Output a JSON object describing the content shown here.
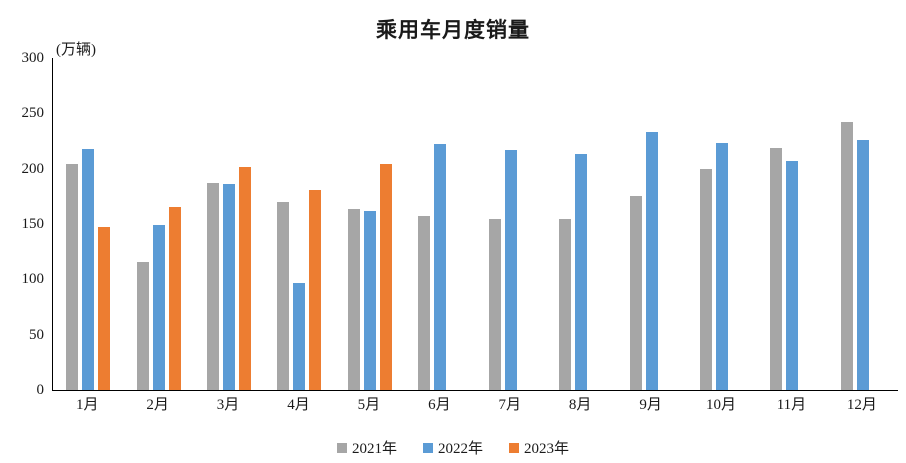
{
  "chart_data": {
    "type": "bar",
    "title": "乘用车月度销量",
    "ylabel": "(万辆)",
    "xlabel": "",
    "categories": [
      "1月",
      "2月",
      "3月",
      "4月",
      "5月",
      "6月",
      "7月",
      "8月",
      "9月",
      "10月",
      "11月",
      "12月"
    ],
    "series": [
      {
        "name": "2021年",
        "color": "#A6A6A6",
        "values": [
          204,
          116,
          187,
          170,
          164,
          157,
          155,
          155,
          175,
          200,
          219,
          242
        ]
      },
      {
        "name": "2022年",
        "color": "#5B9BD5",
        "values": [
          218,
          149,
          186,
          97,
          162,
          222,
          217,
          213,
          233,
          223,
          207,
          226
        ]
      },
      {
        "name": "2023年",
        "color": "#ED7D31",
        "values": [
          147,
          165,
          202,
          181,
          204,
          null,
          null,
          null,
          null,
          null,
          null,
          null
        ]
      }
    ],
    "ylim": [
      0,
      300
    ],
    "yticks": [
      0,
      50,
      100,
      150,
      200,
      250,
      300
    ],
    "grid": false,
    "legend_position": "bottom"
  },
  "colors": {
    "axis": "#000000",
    "text": "#1a1a1a"
  }
}
